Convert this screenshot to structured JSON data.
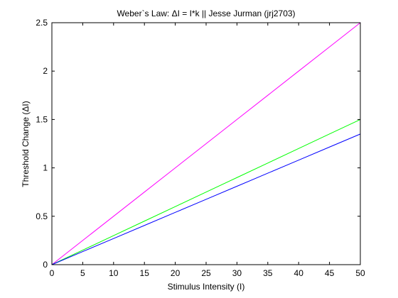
{
  "chart_data": {
    "type": "line",
    "title": "Weber`s Law: ΔI = I*k || Jesse Jurman (jrj2703)",
    "xlabel": "Stimulus Intensity (I)",
    "ylabel": "Threshold Change (ΔI)",
    "xlim": [
      0,
      50
    ],
    "ylim": [
      0,
      2.5
    ],
    "grid": false,
    "legend": "none",
    "x_ticks": [
      0,
      5,
      10,
      15,
      20,
      25,
      30,
      35,
      40,
      45,
      50
    ],
    "y_ticks": [
      0,
      0.5,
      1,
      1.5,
      2,
      2.5
    ],
    "x_tick_labels": [
      "0",
      "5",
      "10",
      "15",
      "20",
      "25",
      "30",
      "35",
      "40",
      "45",
      "50"
    ],
    "y_tick_labels": [
      "0",
      "0.5",
      "1",
      "1.5",
      "2",
      "2.5"
    ],
    "x": [
      0,
      5,
      10,
      15,
      20,
      25,
      30,
      35,
      40,
      45,
      50
    ],
    "series": [
      {
        "color": "#ff00ff",
        "values": [
          0,
          0.25,
          0.5,
          0.75,
          1.0,
          1.25,
          1.5,
          1.75,
          2.0,
          2.25,
          2.5
        ]
      },
      {
        "color": "#00ff00",
        "values": [
          0,
          0.15,
          0.3,
          0.45,
          0.6,
          0.75,
          0.9,
          1.05,
          1.2,
          1.35,
          1.5
        ]
      },
      {
        "color": "#0000ff",
        "values": [
          0,
          0.135,
          0.27,
          0.405,
          0.54,
          0.675,
          0.81,
          0.945,
          1.08,
          1.215,
          1.35
        ]
      }
    ]
  }
}
